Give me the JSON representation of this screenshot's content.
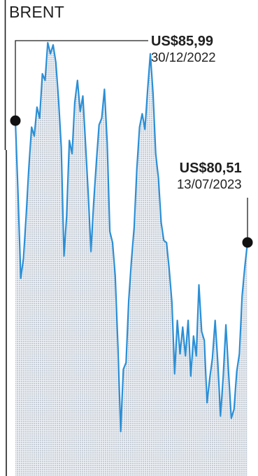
{
  "chart_data": {
    "type": "area",
    "title": "BRENT",
    "xlabel": "",
    "ylabel": "",
    "x_range": [
      "30/12/2022",
      "13/07/2023"
    ],
    "ylim": [
      70,
      90
    ],
    "grid": false,
    "colors": {
      "line": "#2b8fd6",
      "fill": "#c9d1dc",
      "text": "#1f1f1f",
      "axis": "#1f1f1f"
    },
    "series": [
      {
        "values": [
          85.99,
          82.6,
          78.9,
          79.8,
          81.7,
          83.9,
          85.7,
          85.3,
          86.6,
          86.1,
          88.1,
          87.8,
          89.5,
          89.0,
          89.4,
          88.6,
          86.9,
          84.8,
          79.9,
          81.7,
          85.1,
          84.5,
          86.8,
          87.8,
          86.4,
          87.1,
          84.9,
          82.7,
          80.1,
          82.3,
          84.1,
          85.8,
          86.1,
          87.4,
          85.0,
          81.0,
          80.5,
          79.0,
          75.8,
          72.0,
          74.8,
          75.1,
          77.9,
          79.7,
          81.2,
          83.8,
          85.7,
          86.3,
          85.6,
          87.4,
          89.0,
          87.2,
          84.5,
          83.4,
          81.4,
          80.6,
          80.5,
          79.3,
          77.8,
          74.6,
          77.0,
          75.5,
          76.7,
          75.4,
          77.0,
          74.5,
          76.3,
          75.4,
          78.6,
          76.5,
          76.1,
          73.3,
          74.4,
          75.3,
          77.0,
          75.1,
          72.7,
          74.5,
          76.8,
          74.6,
          72.6,
          73.0,
          74.7,
          75.5,
          78.1,
          79.4,
          80.51
        ]
      }
    ],
    "annotations": [
      {
        "value": "US$85,99",
        "date": "30/12/2022",
        "point": "start"
      },
      {
        "value": "US$80,51",
        "date": "13/07/2023",
        "point": "end"
      }
    ]
  }
}
